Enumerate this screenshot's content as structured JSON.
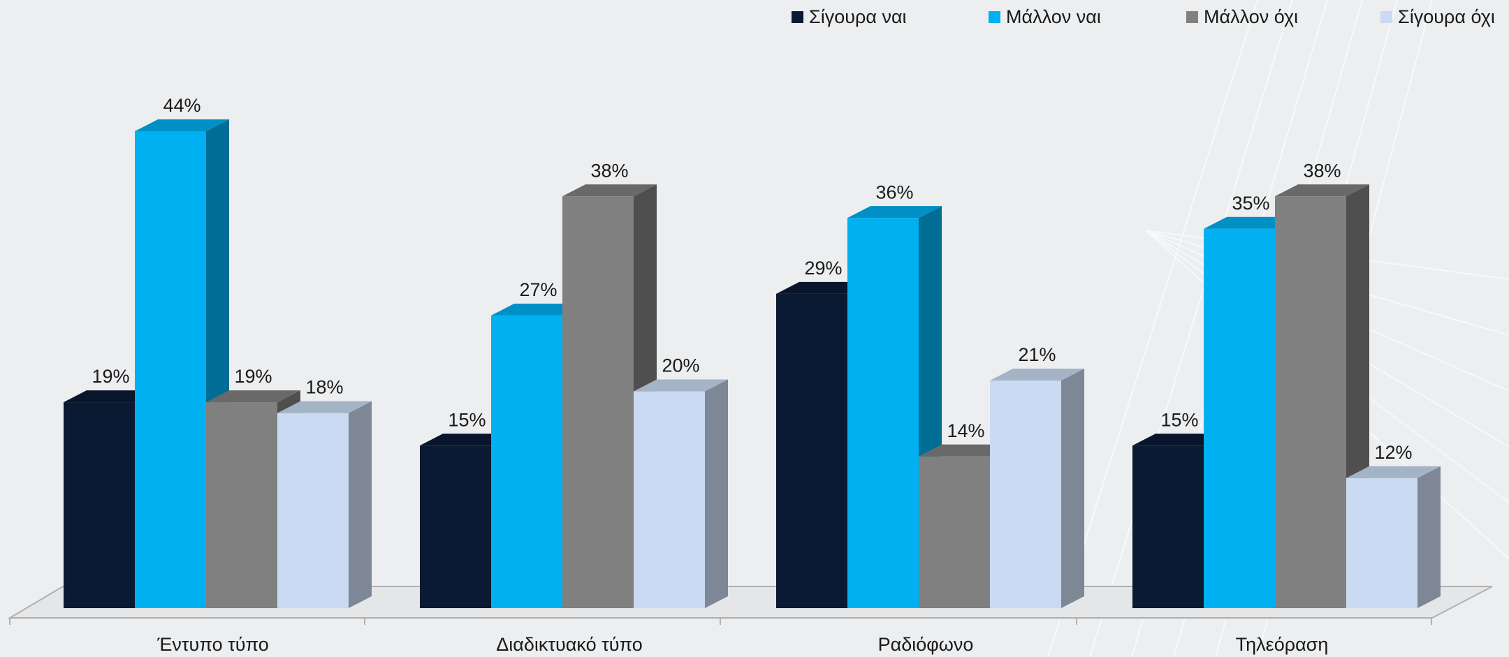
{
  "chart_data": {
    "type": "bar3d",
    "categories": [
      "Έντυπο τύπο",
      "Διαδικτυακό τύπο",
      "Ραδιόφωνο",
      "Τηλεόραση"
    ],
    "legend": "top-right",
    "series": [
      {
        "name": "Σίγουρα ναι",
        "color": "#0b1a33",
        "values": [
          19,
          15,
          29,
          15
        ],
        "value_labels": [
          "19%",
          "15%",
          "29%",
          "15%"
        ]
      },
      {
        "name": "Μάλλον ναι",
        "color": "#00b0f0",
        "values": [
          44,
          27,
          36,
          35
        ],
        "value_labels": [
          "44%",
          "27%",
          "36%",
          "35%"
        ]
      },
      {
        "name": "Μάλλον όχι",
        "color": "#808080",
        "values": [
          19,
          38,
          14,
          38
        ],
        "value_labels": [
          "19%",
          "38%",
          "14%",
          "38%"
        ]
      },
      {
        "name": "Σίγουρα όχι",
        "color": "#c9daf2",
        "values": [
          18,
          20,
          21,
          12
        ],
        "value_labels": [
          "18%",
          "20%",
          "21%",
          "12%"
        ]
      }
    ]
  }
}
